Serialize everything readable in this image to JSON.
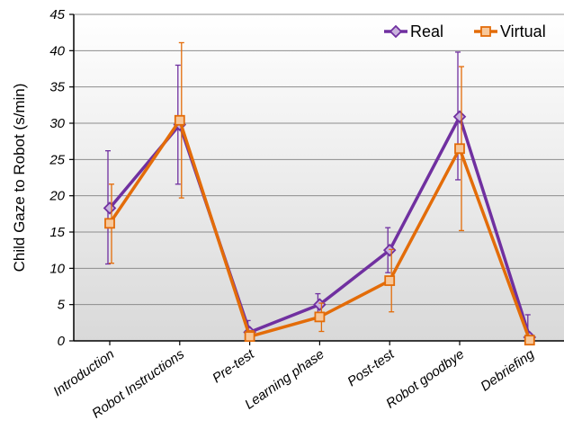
{
  "chart_data": {
    "type": "line",
    "title": "",
    "xlabel": "",
    "ylabel": "Child Gaze to Robot (s/min)",
    "ylim": [
      0,
      45
    ],
    "yticks": [
      0,
      5,
      10,
      15,
      20,
      25,
      30,
      35,
      40,
      45
    ],
    "grid": true,
    "legend_position": "top-right",
    "categories": [
      "Introduction",
      "Robot Instructions",
      "Pre-test",
      "Learning phase",
      "Post-test",
      "Robot goodbye",
      "Debriefing"
    ],
    "series": [
      {
        "name": "Real",
        "color": "#7030A0",
        "marker": "diamond",
        "values": [
          18.3,
          29.8,
          1.2,
          5.0,
          12.5,
          30.9,
          0.5
        ],
        "err_low": [
          10.6,
          21.6,
          0.2,
          3.6,
          9.4,
          22.2,
          0.0
        ],
        "err_high": [
          26.2,
          38.0,
          2.8,
          6.5,
          15.6,
          39.8,
          3.6
        ]
      },
      {
        "name": "Virtual",
        "color": "#E36C09",
        "marker": "square",
        "values": [
          16.2,
          30.4,
          0.6,
          3.3,
          8.3,
          26.5,
          0.1
        ],
        "err_low": [
          10.7,
          19.7,
          0.0,
          1.3,
          4.0,
          15.2,
          0.0
        ],
        "err_high": [
          21.6,
          41.1,
          1.4,
          5.2,
          12.6,
          37.8,
          0.5
        ]
      }
    ]
  }
}
